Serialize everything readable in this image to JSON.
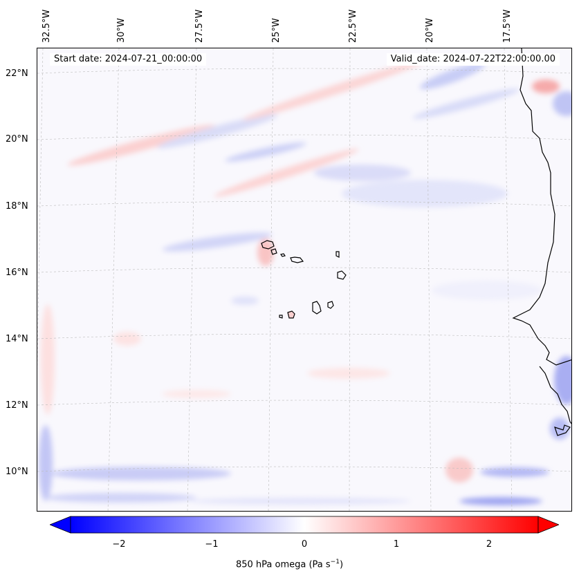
{
  "map": {
    "title_left": "Start date: 2024-07-21_00:00:00",
    "title_right": "Valid_date: 2024-07-22T22:00:00.00",
    "lon_labels": [
      "32.5°W",
      "30°W",
      "27.5°W",
      "25°W",
      "22.5°W",
      "20°W",
      "17.5°W"
    ],
    "lat_labels": [
      "22°N",
      "20°N",
      "18°N",
      "16°N",
      "14°N",
      "12°N",
      "10°N"
    ],
    "variable": "850 hPa omega"
  },
  "colorbar": {
    "ticks": [
      "−2",
      "−1",
      "0",
      "1",
      "2"
    ],
    "label_prefix": "850 hPa omega (Pa s",
    "label_exp": "−1",
    "label_suffix": ")",
    "min": -2.5,
    "max": 2.5,
    "colormap": "bwr",
    "extend": "both"
  },
  "colors": {
    "land_outline": "#000000",
    "grid": "#bbbbbb",
    "neg_strong": "#0000ff",
    "pos_strong": "#ff0000",
    "background_field": "#f9f8fd"
  }
}
